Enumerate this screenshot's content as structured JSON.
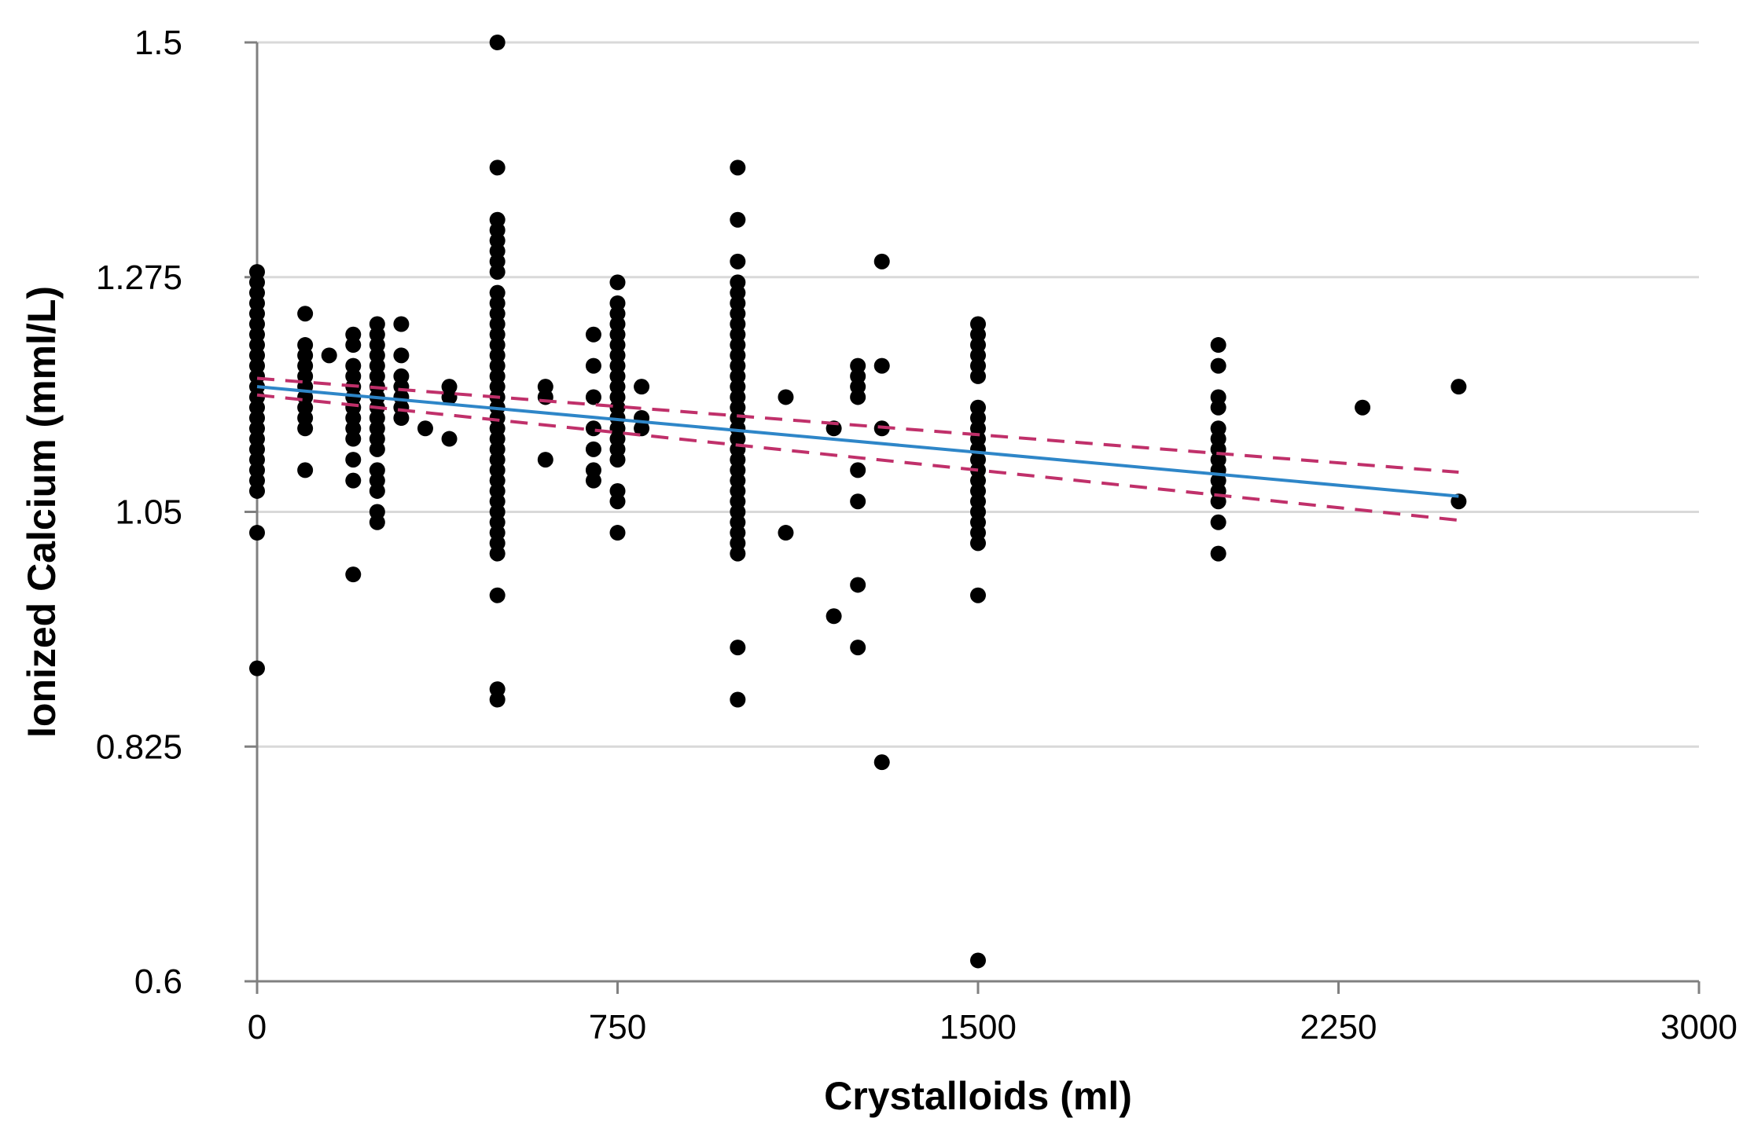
{
  "chart_data": {
    "type": "scatter",
    "title": "",
    "xlabel": "Crystalloids (ml)",
    "ylabel": "Ionized Calcium (mml/L)",
    "xlim": [
      0,
      3000
    ],
    "ylim": [
      0.6,
      1.5
    ],
    "x_ticks": [
      0,
      750,
      1500,
      2250,
      3000
    ],
    "y_ticks": [
      0.6,
      0.825,
      1.05,
      1.275,
      1.5
    ],
    "x_tick_labels": [
      "0",
      "750",
      "1500",
      "2250",
      "3000"
    ],
    "y_tick_labels": [
      "0.6",
      "0.825",
      "1.05",
      "1.275",
      "1.5"
    ],
    "grid": "horizontal",
    "legend": "none",
    "colors": {
      "points": "#000000",
      "regression": "#2e86c8",
      "confidence": "#c0306a",
      "grid": "#d9d9d9",
      "axis": "#808080"
    },
    "points": [
      [
        0,
        1.28
      ],
      [
        0,
        1.27
      ],
      [
        0,
        1.26
      ],
      [
        0,
        1.25
      ],
      [
        0,
        1.24
      ],
      [
        0,
        1.23
      ],
      [
        0,
        1.22
      ],
      [
        0,
        1.21
      ],
      [
        0,
        1.2
      ],
      [
        0,
        1.19
      ],
      [
        0,
        1.18
      ],
      [
        0,
        1.17
      ],
      [
        0,
        1.16
      ],
      [
        0,
        1.15
      ],
      [
        0,
        1.14
      ],
      [
        0,
        1.13
      ],
      [
        0,
        1.12
      ],
      [
        0,
        1.11
      ],
      [
        0,
        1.1
      ],
      [
        0,
        1.09
      ],
      [
        0,
        1.08
      ],
      [
        0,
        1.07
      ],
      [
        0,
        1.03
      ],
      [
        0,
        0.9
      ],
      [
        100,
        1.24
      ],
      [
        100,
        1.21
      ],
      [
        100,
        1.2
      ],
      [
        100,
        1.19
      ],
      [
        100,
        1.18
      ],
      [
        100,
        1.17
      ],
      [
        100,
        1.16
      ],
      [
        100,
        1.15
      ],
      [
        100,
        1.14
      ],
      [
        100,
        1.13
      ],
      [
        100,
        1.09
      ],
      [
        150,
        1.2
      ],
      [
        200,
        1.22
      ],
      [
        200,
        1.21
      ],
      [
        200,
        1.19
      ],
      [
        200,
        1.18
      ],
      [
        200,
        1.17
      ],
      [
        200,
        1.16
      ],
      [
        200,
        1.15
      ],
      [
        200,
        1.14
      ],
      [
        200,
        1.13
      ],
      [
        200,
        1.12
      ],
      [
        200,
        1.1
      ],
      [
        200,
        1.08
      ],
      [
        200,
        0.99
      ],
      [
        250,
        1.23
      ],
      [
        250,
        1.22
      ],
      [
        250,
        1.21
      ],
      [
        250,
        1.2
      ],
      [
        250,
        1.19
      ],
      [
        250,
        1.18
      ],
      [
        250,
        1.17
      ],
      [
        250,
        1.16
      ],
      [
        250,
        1.15
      ],
      [
        250,
        1.14
      ],
      [
        250,
        1.13
      ],
      [
        250,
        1.12
      ],
      [
        250,
        1.11
      ],
      [
        250,
        1.09
      ],
      [
        250,
        1.08
      ],
      [
        250,
        1.07
      ],
      [
        250,
        1.05
      ],
      [
        250,
        1.04
      ],
      [
        300,
        1.23
      ],
      [
        300,
        1.2
      ],
      [
        300,
        1.18
      ],
      [
        300,
        1.17
      ],
      [
        300,
        1.16
      ],
      [
        300,
        1.15
      ],
      [
        300,
        1.14
      ],
      [
        350,
        1.13
      ],
      [
        400,
        1.17
      ],
      [
        400,
        1.16
      ],
      [
        400,
        1.12
      ],
      [
        500,
        1.5
      ],
      [
        500,
        1.38
      ],
      [
        500,
        1.33
      ],
      [
        500,
        1.32
      ],
      [
        500,
        1.31
      ],
      [
        500,
        1.3
      ],
      [
        500,
        1.29
      ],
      [
        500,
        1.28
      ],
      [
        500,
        1.26
      ],
      [
        500,
        1.25
      ],
      [
        500,
        1.24
      ],
      [
        500,
        1.23
      ],
      [
        500,
        1.22
      ],
      [
        500,
        1.21
      ],
      [
        500,
        1.2
      ],
      [
        500,
        1.19
      ],
      [
        500,
        1.18
      ],
      [
        500,
        1.17
      ],
      [
        500,
        1.16
      ],
      [
        500,
        1.15
      ],
      [
        500,
        1.14
      ],
      [
        500,
        1.13
      ],
      [
        500,
        1.12
      ],
      [
        500,
        1.11
      ],
      [
        500,
        1.1
      ],
      [
        500,
        1.09
      ],
      [
        500,
        1.08
      ],
      [
        500,
        1.07
      ],
      [
        500,
        1.06
      ],
      [
        500,
        1.05
      ],
      [
        500,
        1.04
      ],
      [
        500,
        1.03
      ],
      [
        500,
        1.02
      ],
      [
        500,
        1.01
      ],
      [
        500,
        0.97
      ],
      [
        500,
        0.88
      ],
      [
        500,
        0.87
      ],
      [
        600,
        1.17
      ],
      [
        600,
        1.16
      ],
      [
        600,
        1.1
      ],
      [
        700,
        1.22
      ],
      [
        700,
        1.19
      ],
      [
        700,
        1.16
      ],
      [
        700,
        1.13
      ],
      [
        700,
        1.11
      ],
      [
        700,
        1.09
      ],
      [
        700,
        1.08
      ],
      [
        750,
        1.27
      ],
      [
        750,
        1.25
      ],
      [
        750,
        1.24
      ],
      [
        750,
        1.23
      ],
      [
        750,
        1.22
      ],
      [
        750,
        1.21
      ],
      [
        750,
        1.2
      ],
      [
        750,
        1.19
      ],
      [
        750,
        1.18
      ],
      [
        750,
        1.17
      ],
      [
        750,
        1.16
      ],
      [
        750,
        1.15
      ],
      [
        750,
        1.14
      ],
      [
        750,
        1.13
      ],
      [
        750,
        1.12
      ],
      [
        750,
        1.11
      ],
      [
        750,
        1.1
      ],
      [
        750,
        1.07
      ],
      [
        750,
        1.06
      ],
      [
        750,
        1.03
      ],
      [
        800,
        1.17
      ],
      [
        800,
        1.14
      ],
      [
        800,
        1.13
      ],
      [
        1000,
        1.38
      ],
      [
        1000,
        1.33
      ],
      [
        1000,
        1.29
      ],
      [
        1000,
        1.27
      ],
      [
        1000,
        1.26
      ],
      [
        1000,
        1.25
      ],
      [
        1000,
        1.24
      ],
      [
        1000,
        1.23
      ],
      [
        1000,
        1.22
      ],
      [
        1000,
        1.21
      ],
      [
        1000,
        1.2
      ],
      [
        1000,
        1.19
      ],
      [
        1000,
        1.18
      ],
      [
        1000,
        1.17
      ],
      [
        1000,
        1.16
      ],
      [
        1000,
        1.15
      ],
      [
        1000,
        1.14
      ],
      [
        1000,
        1.13
      ],
      [
        1000,
        1.12
      ],
      [
        1000,
        1.11
      ],
      [
        1000,
        1.1
      ],
      [
        1000,
        1.09
      ],
      [
        1000,
        1.08
      ],
      [
        1000,
        1.07
      ],
      [
        1000,
        1.06
      ],
      [
        1000,
        1.05
      ],
      [
        1000,
        1.04
      ],
      [
        1000,
        1.03
      ],
      [
        1000,
        1.02
      ],
      [
        1000,
        1.01
      ],
      [
        1000,
        0.92
      ],
      [
        1000,
        0.87
      ],
      [
        1100,
        1.16
      ],
      [
        1100,
        1.03
      ],
      [
        1200,
        1.13
      ],
      [
        1200,
        0.95
      ],
      [
        1250,
        1.19
      ],
      [
        1250,
        1.18
      ],
      [
        1250,
        1.17
      ],
      [
        1250,
        1.16
      ],
      [
        1250,
        1.09
      ],
      [
        1250,
        1.06
      ],
      [
        1250,
        0.98
      ],
      [
        1250,
        0.92
      ],
      [
        1300,
        1.29
      ],
      [
        1300,
        1.19
      ],
      [
        1300,
        1.13
      ],
      [
        1300,
        0.81
      ],
      [
        1500,
        1.23
      ],
      [
        1500,
        1.22
      ],
      [
        1500,
        1.21
      ],
      [
        1500,
        1.2
      ],
      [
        1500,
        1.19
      ],
      [
        1500,
        1.18
      ],
      [
        1500,
        1.15
      ],
      [
        1500,
        1.14
      ],
      [
        1500,
        1.13
      ],
      [
        1500,
        1.12
      ],
      [
        1500,
        1.11
      ],
      [
        1500,
        1.1
      ],
      [
        1500,
        1.09
      ],
      [
        1500,
        1.08
      ],
      [
        1500,
        1.07
      ],
      [
        1500,
        1.06
      ],
      [
        1500,
        1.05
      ],
      [
        1500,
        1.04
      ],
      [
        1500,
        1.03
      ],
      [
        1500,
        1.02
      ],
      [
        1500,
        0.97
      ],
      [
        1500,
        0.62
      ],
      [
        2000,
        1.21
      ],
      [
        2000,
        1.19
      ],
      [
        2000,
        1.16
      ],
      [
        2000,
        1.15
      ],
      [
        2000,
        1.13
      ],
      [
        2000,
        1.12
      ],
      [
        2000,
        1.11
      ],
      [
        2000,
        1.1
      ],
      [
        2000,
        1.09
      ],
      [
        2000,
        1.08
      ],
      [
        2000,
        1.07
      ],
      [
        2000,
        1.06
      ],
      [
        2000,
        1.04
      ],
      [
        2000,
        1.01
      ],
      [
        2300,
        1.15
      ],
      [
        2500,
        1.17
      ],
      [
        2500,
        1.06
      ]
    ],
    "regression": {
      "x": [
        0,
        2500
      ],
      "y": [
        1.17,
        1.065
      ]
    },
    "confidence_upper": {
      "x": [
        0,
        2500
      ],
      "y": [
        1.178,
        1.088
      ]
    },
    "confidence_lower": {
      "x": [
        0,
        2500
      ],
      "y": [
        1.162,
        1.042
      ]
    }
  }
}
